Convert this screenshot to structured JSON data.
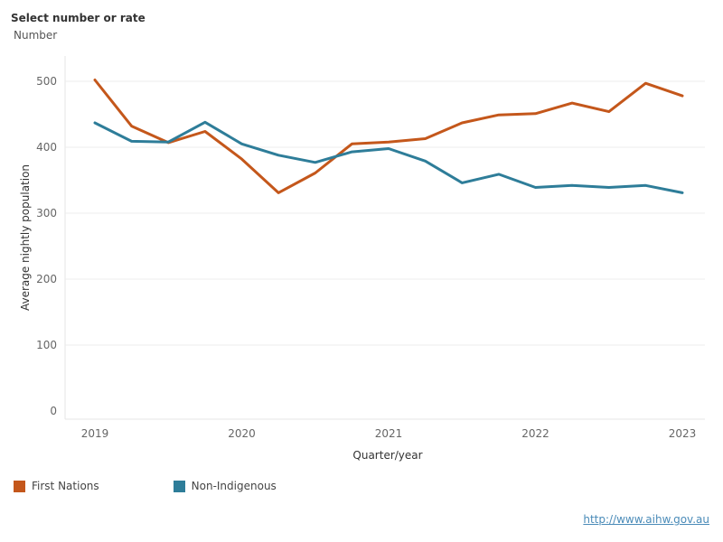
{
  "control": {
    "title": "Select number or rate",
    "selected": "Number"
  },
  "chart_data": {
    "type": "line",
    "xlabel": "Quarter/year",
    "ylabel": "Average nightly population",
    "x_ticks": [
      "2019",
      "2020",
      "2021",
      "2022",
      "2023"
    ],
    "y_ticks": [
      0,
      100,
      200,
      300,
      400,
      500
    ],
    "ylim": [
      0,
      530
    ],
    "grid": true,
    "legend_position": "bottom-left",
    "x": [
      "2019 Q1",
      "2019 Q2",
      "2019 Q3",
      "2019 Q4",
      "2020 Q1",
      "2020 Q2",
      "2020 Q3",
      "2020 Q4",
      "2021 Q1",
      "2021 Q2",
      "2021 Q3",
      "2021 Q4",
      "2022 Q1",
      "2022 Q2",
      "2022 Q3",
      "2022 Q4",
      "2023 Q1"
    ],
    "series": [
      {
        "name": "First Nations",
        "color": "#c4571b",
        "values": [
          502,
          432,
          407,
          424,
          382,
          331,
          361,
          405,
          408,
          413,
          437,
          449,
          451,
          467,
          454,
          497,
          478
        ]
      },
      {
        "name": "Non-Indigenous",
        "color": "#2e7d99",
        "values": [
          437,
          409,
          408,
          438,
          405,
          388,
          377,
          393,
          398,
          379,
          346,
          359,
          339,
          342,
          339,
          342,
          331
        ]
      }
    ]
  },
  "source": {
    "link_text": "http://www.aihw.gov.au"
  }
}
